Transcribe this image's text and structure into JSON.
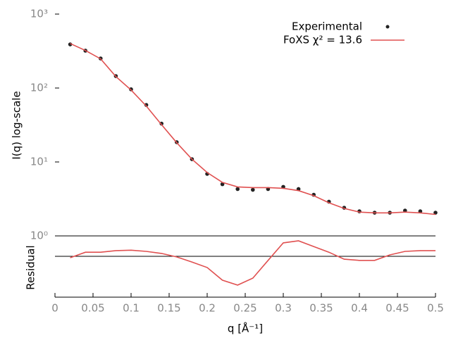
{
  "chart_data": [
    {
      "type": "line",
      "ylabel": "I(q) log-scale",
      "log_y": true,
      "legend": "top-right",
      "xlim": [
        0,
        0.5
      ],
      "ylim": [
        1,
        1000
      ],
      "yticks": [
        {
          "value": 1,
          "label": "10⁰"
        },
        {
          "value": 10,
          "label": "10¹"
        },
        {
          "value": 100,
          "label": "10²"
        },
        {
          "value": 1000,
          "label": "10³"
        }
      ],
      "x": [
        0.02,
        0.04,
        0.06,
        0.08,
        0.1,
        0.12,
        0.14,
        0.16,
        0.18,
        0.2,
        0.22,
        0.24,
        0.26,
        0.28,
        0.3,
        0.32,
        0.34,
        0.36,
        0.38,
        0.4,
        0.42,
        0.44,
        0.46,
        0.48,
        0.5
      ],
      "series": [
        {
          "name": "Experimental",
          "color": "#222222",
          "style": "points",
          "values": [
            389,
            320,
            251,
            145,
            96,
            59,
            33,
            18.5,
            10.9,
            6.9,
            5.0,
            4.3,
            4.2,
            4.3,
            4.6,
            4.3,
            3.6,
            2.9,
            2.4,
            2.15,
            2.06,
            2.06,
            2.2,
            2.15,
            2.06
          ]
        },
        {
          "name": "FoXS χ² = 13.6",
          "color": "#e05050",
          "style": "line",
          "values": [
            400,
            322,
            248,
            143,
            94,
            57,
            32,
            18.2,
            10.9,
            7.2,
            5.3,
            4.6,
            4.5,
            4.5,
            4.4,
            4.1,
            3.5,
            2.8,
            2.35,
            2.1,
            2.05,
            2.05,
            2.1,
            2.05,
            1.95
          ]
        }
      ]
    },
    {
      "type": "line",
      "ylabel": "Residual",
      "xlabel": "q [Å⁻¹]",
      "xlim": [
        0,
        0.5
      ],
      "ylim": [
        -2,
        1
      ],
      "xticks": [
        0,
        0.05,
        0.1,
        0.15,
        0.2,
        0.25,
        0.3,
        0.35,
        0.4,
        0.45,
        0.5
      ],
      "x": [
        0.02,
        0.04,
        0.06,
        0.08,
        0.1,
        0.12,
        0.14,
        0.16,
        0.18,
        0.2,
        0.22,
        0.24,
        0.26,
        0.28,
        0.3,
        0.32,
        0.34,
        0.36,
        0.38,
        0.4,
        0.42,
        0.44,
        0.46,
        0.48,
        0.5
      ],
      "series": [
        {
          "color": "#e05050",
          "style": "line",
          "values": [
            -0.07,
            0.2,
            0.2,
            0.28,
            0.3,
            0.24,
            0.14,
            -0.03,
            -0.28,
            -0.55,
            -1.17,
            -1.41,
            -1.07,
            -0.2,
            0.66,
            0.76,
            0.48,
            0.2,
            -0.14,
            -0.2,
            -0.2,
            0.07,
            0.24,
            0.28,
            0.28
          ]
        }
      ]
    }
  ]
}
